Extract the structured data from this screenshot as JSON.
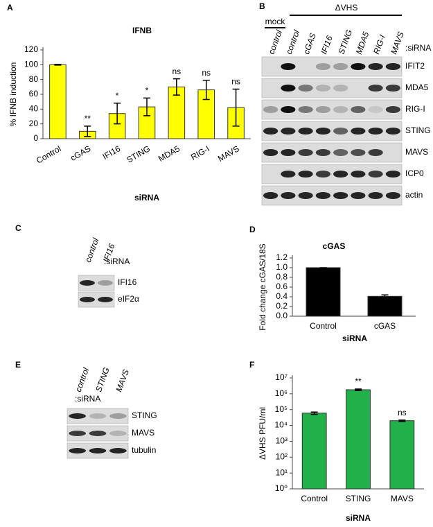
{
  "panel_labels": [
    "A",
    "B",
    "C",
    "D",
    "E",
    "F"
  ],
  "chart_data": [
    {
      "type": "bar",
      "title": "IFNB",
      "y_label": "% IFNB induction",
      "x_label": "siRNA",
      "categories": [
        "Control",
        "cGAS",
        "IFI16",
        "STING",
        "MDA5",
        "RIG-I",
        "MAVS"
      ],
      "values": [
        100,
        10,
        34,
        43,
        70,
        66,
        42
      ],
      "errors": [
        0.5,
        7,
        14,
        12,
        11,
        13,
        25
      ],
      "annotations": [
        null,
        "**",
        "*",
        "*",
        "ns",
        "ns",
        "ns"
      ],
      "color": "#ffff00",
      "ylim": [
        0,
        120
      ],
      "yticks": [
        0,
        20,
        40,
        60,
        80,
        100,
        120
      ]
    },
    {
      "type": "bar",
      "title": "cGAS",
      "y_label": "Fold change cGAS/18S",
      "x_label": "siRNA",
      "categories": [
        "Control",
        "cGAS"
      ],
      "values": [
        1.0,
        0.41
      ],
      "errors": [
        0,
        0.03
      ],
      "color": "#000000",
      "ylim": [
        0,
        1.2
      ],
      "yticks": [
        {
          "value": 0,
          "label": "0.0"
        },
        0.2,
        0.4,
        0.6,
        0.8,
        {
          "value": 1,
          "label": "1.0"
        },
        1.2
      ]
    },
    {
      "type": "bar",
      "y_label": "ΔVHS PFU/ml",
      "x_label": "siRNA",
      "log_scale": true,
      "categories": [
        "Control",
        "STING",
        "MAVS"
      ],
      "values": [
        60000,
        1800000,
        20000
      ],
      "errors": [
        10000,
        200000,
        2000
      ],
      "annotations": [
        null,
        "**",
        "ns"
      ],
      "color": "#22b04b",
      "ylim": [
        1,
        10000000
      ],
      "yticks": [
        {
          "value": 1,
          "label": "10⁰"
        },
        {
          "value": 10,
          "label": "10¹"
        },
        {
          "value": 100,
          "label": "10²"
        },
        {
          "value": 1000,
          "label": "10³"
        },
        {
          "value": 10000,
          "label": "10⁴"
        },
        {
          "value": 100000,
          "label": "10⁵"
        },
        {
          "value": 1000000,
          "label": "10⁶"
        },
        {
          "value": 10000000,
          "label": "10⁷"
        }
      ]
    }
  ],
  "blots": [
    {
      "mock_label": "mock",
      "treatment_label": "ΔVHS",
      "lane_header": ":siRNA",
      "lanes": [
        "control",
        "control",
        "cGAS",
        "IFI16",
        "STING",
        "MDA5",
        "RIG-I",
        "MAVS"
      ],
      "rows": [
        "IFIT2",
        "MDA5",
        "RIG-I",
        "STING",
        "MAVS",
        "ICP0",
        "actin"
      ]
    },
    {
      "lane_header": ":siRNA",
      "lanes": [
        "control",
        "IFI16"
      ],
      "rows": [
        "IFI16",
        "eIF2α"
      ]
    },
    {
      "lane_header": ":siRNA",
      "lanes": [
        "control",
        "STING",
        "MAVS"
      ],
      "rows": [
        "STING",
        "MAVS",
        "tubulin"
      ]
    }
  ]
}
